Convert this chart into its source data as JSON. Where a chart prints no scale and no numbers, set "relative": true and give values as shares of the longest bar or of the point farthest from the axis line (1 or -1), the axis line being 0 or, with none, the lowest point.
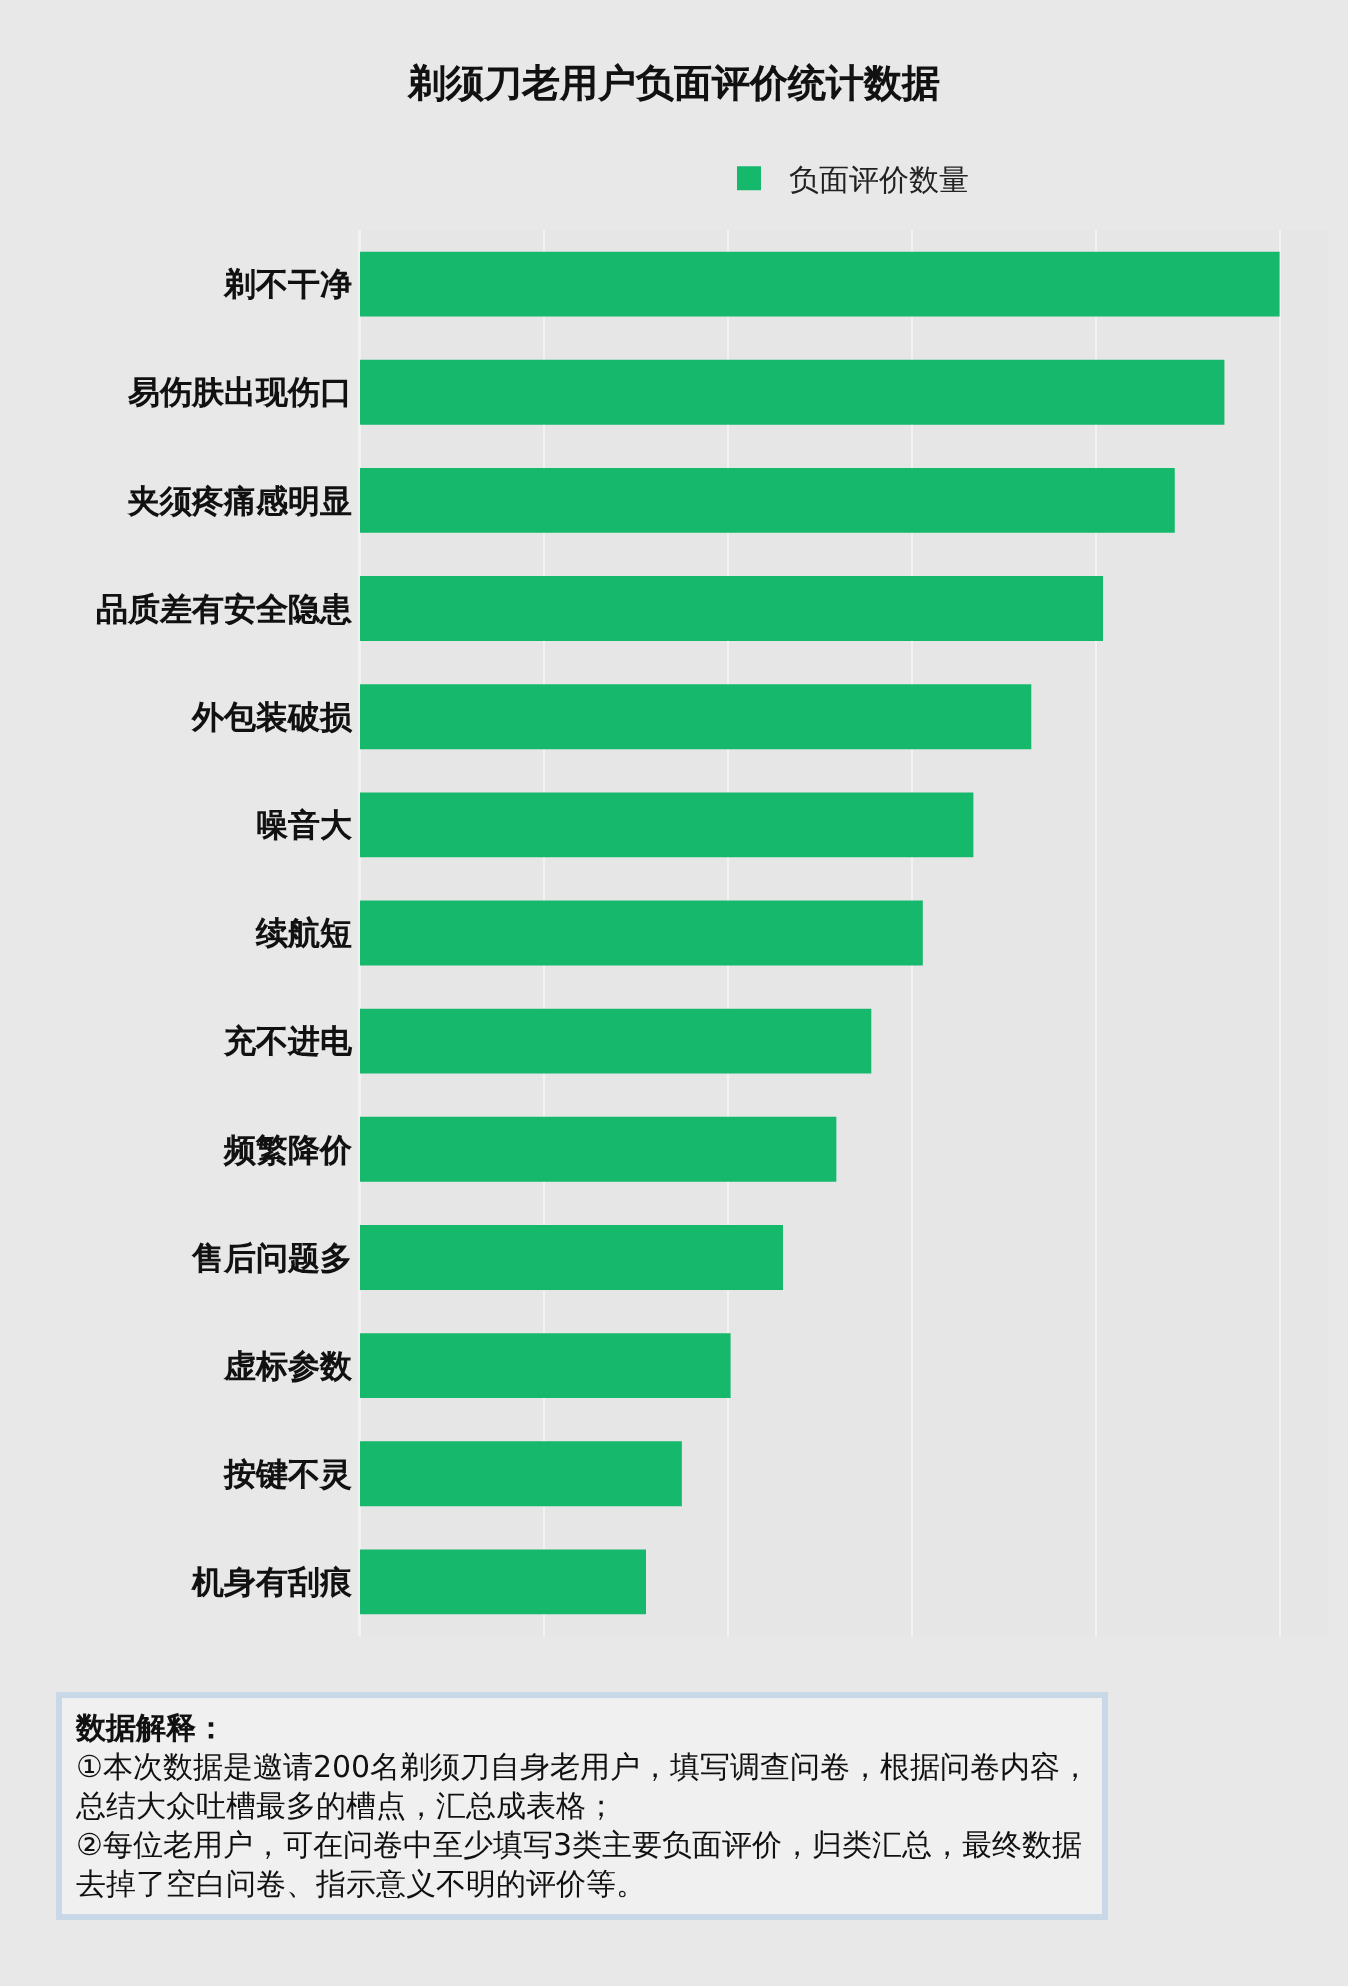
{
  "chart_data": {
    "type": "bar",
    "orientation": "horizontal",
    "relative": true,
    "title": "剃须刀老用户负面评价统计数据",
    "categories": [
      "剃不干净",
      "易伤肤出现伤口",
      "夹须疼痛感明显",
      "品质差有安全隐患",
      "外包装破损",
      "噪音大",
      "续航短",
      "充不进电",
      "频繁降价",
      "售后问题多",
      "虚标参数",
      "按键不灵",
      "机身有刮痕"
    ],
    "series": [
      {
        "name": "负面评价数量",
        "color": "#16b86c",
        "values": [
          1,
          0.94,
          0.886,
          0.808,
          0.73,
          0.667,
          0.612,
          0.556,
          0.518,
          0.46,
          0.403,
          0.35,
          0.311
        ]
      }
    ],
    "legend": "top",
    "grid": "x",
    "annotations": [
      "数据解释：",
      "①本次数据是邀请200名剃须刀自身老用户，填写调查问卷，根据问卷内容，总结大众吐槽最多的槽点，汇总成表格；",
      "②每位老用户，可在问卷中至少填写3类主要负面评价，归类汇总，最终数据去掉了空白问卷、指示意义不明的评价等。"
    ]
  }
}
